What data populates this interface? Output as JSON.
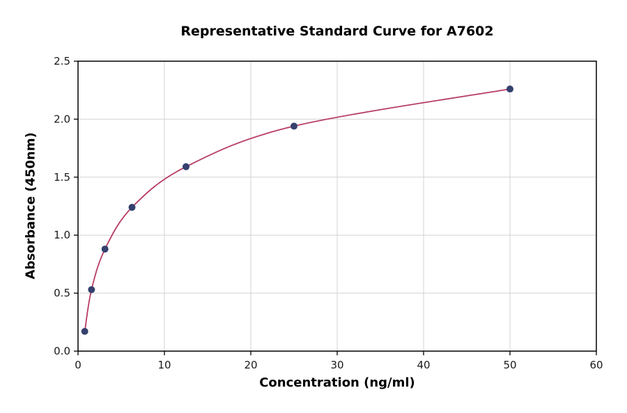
{
  "title": "Representative Standard Curve for A7602",
  "chart_data": {
    "type": "line",
    "title": "Representative Standard Curve for A7602",
    "xlabel": "Concentration (ng/ml)",
    "ylabel": "Absorbance (450nm)",
    "xlim": [
      0,
      60
    ],
    "ylim": [
      0,
      2.5
    ],
    "x_ticks": [
      0,
      10,
      20,
      30,
      40,
      50,
      60
    ],
    "x_tick_labels": [
      "0",
      "10",
      "20",
      "30",
      "40",
      "50",
      "60"
    ],
    "y_ticks": [
      0,
      0.5,
      1.0,
      1.5,
      2.0,
      2.5
    ],
    "y_tick_labels": [
      "0.0",
      "0.5",
      "1.0",
      "1.5",
      "2.0",
      "2.5"
    ],
    "grid": true,
    "legend_position": "none",
    "colors": {
      "line": "#b73b63",
      "marker": "#35406e",
      "grid": "#d3d3d3",
      "spine": "#000000"
    },
    "series": [
      {
        "name": "standard-curve",
        "x": [
          0.78,
          1.56,
          3.12,
          6.25,
          12.5,
          25,
          50
        ],
        "y": [
          0.17,
          0.53,
          0.88,
          1.24,
          1.59,
          1.94,
          2.26
        ]
      }
    ]
  }
}
